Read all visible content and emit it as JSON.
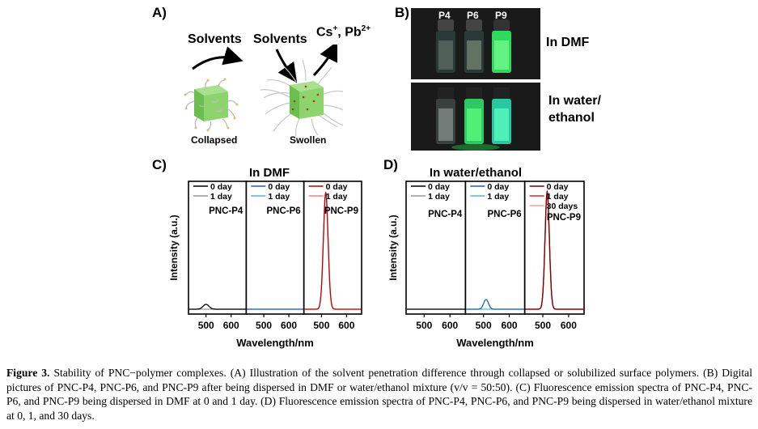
{
  "panel_a": {
    "label": "A)",
    "solvents_left": "Solvents",
    "solvents_right": "Solvents",
    "ions": "Cs",
    "ions_sup1": "+",
    "ions_mid": ", Pb",
    "ions_sup2": "2+",
    "collapsed": "Collapsed",
    "swollen": "Swollen"
  },
  "panel_b": {
    "label": "B)",
    "vials": [
      "P4",
      "P6",
      "P9"
    ],
    "top_label": "In DMF",
    "bottom_label_1": "In water/",
    "bottom_label_2": "ethanol"
  },
  "panel_c_label": "C)",
  "panel_d_label": "D)",
  "chart_data": [
    {
      "type": "line",
      "title": "In DMF",
      "xlabel": "Wavelength/nm",
      "ylabel": "Intensity (a.u.)",
      "panels": [
        {
          "name": "PNC-P4",
          "xlim": [
            430,
            660
          ],
          "xticks": [
            500,
            600
          ],
          "series": [
            {
              "name": "0 day",
              "color": "#000000",
              "peak_x": 500,
              "peak_y": 0.04,
              "fwhm": 28
            },
            {
              "name": "1 day",
              "color": "#999999",
              "peak_x": 500,
              "peak_y": 0.0,
              "fwhm": 28
            }
          ]
        },
        {
          "name": "PNC-P6",
          "xlim": [
            430,
            660
          ],
          "xticks": [
            500,
            600
          ],
          "series": [
            {
              "name": "0 day",
              "color": "#1f5fb4",
              "peak_x": 510,
              "peak_y": 0.0,
              "fwhm": 25
            },
            {
              "name": "1 day",
              "color": "#4fb3e8",
              "peak_x": 510,
              "peak_y": 0.0,
              "fwhm": 25
            }
          ]
        },
        {
          "name": "PNC-P9",
          "xlim": [
            430,
            660
          ],
          "xticks": [
            500,
            600
          ],
          "series": [
            {
              "name": "0 day",
              "color": "#c00000",
              "peak_x": 517,
              "peak_y": 0.96,
              "fwhm": 22
            },
            {
              "name": "1 day",
              "color": "#f08080",
              "peak_x": 517,
              "peak_y": 0.95,
              "fwhm": 22
            }
          ]
        }
      ]
    },
    {
      "type": "line",
      "title": "In water/ethanol",
      "xlabel": "Wavelength/nm",
      "ylabel": "Intensity (a.u.)",
      "panels": [
        {
          "name": "PNC-P4",
          "xlim": [
            430,
            660
          ],
          "xticks": [
            500,
            600
          ],
          "series": [
            {
              "name": "0 day",
              "color": "#000000",
              "peak_x": 500,
              "peak_y": 0.0,
              "fwhm": 28
            },
            {
              "name": "1 day",
              "color": "#999999",
              "peak_x": 500,
              "peak_y": 0.0,
              "fwhm": 28
            }
          ]
        },
        {
          "name": "PNC-P6",
          "xlim": [
            430,
            660
          ],
          "xticks": [
            500,
            600
          ],
          "series": [
            {
              "name": "0 day",
              "color": "#1f5fb4",
              "peak_x": 510,
              "peak_y": 0.08,
              "fwhm": 22
            },
            {
              "name": "1 day",
              "color": "#4fb3e8",
              "peak_x": 510,
              "peak_y": 0.0,
              "fwhm": 22
            }
          ]
        },
        {
          "name": "PNC-P9",
          "xlim": [
            430,
            660
          ],
          "xticks": [
            500,
            600
          ],
          "series": [
            {
              "name": "0 day",
              "color": "#7a0000",
              "peak_x": 517,
              "peak_y": 0.97,
              "fwhm": 20
            },
            {
              "name": "1 day",
              "color": "#e02020",
              "peak_x": 517,
              "peak_y": 0.95,
              "fwhm": 20
            },
            {
              "name": "30 days",
              "color": "#f4a0a0",
              "peak_x": 517,
              "peak_y": 0.93,
              "fwhm": 20
            }
          ]
        }
      ]
    }
  ],
  "caption": {
    "lead": "Figure 3.",
    "text": " Stability of PNC−polymer complexes. (A) Illustration of the solvent penetration difference through collapsed or solubilized surface polymers. (B) Digital pictures of PNC-P4, PNC-P6, and PNC-P9 after being dispersed in DMF or water/ethanol mixture (v/v = 50:50). (C) Fluorescence emission spectra of PNC-P4, PNC-P6, and PNC-P9 being dispersed in DMF at 0 and 1 day. (D) Fluorescence emission spectra of PNC-P4, PNC-P6, and PNC-P9 being dispersed in water/ethanol mixture at 0, 1, and 30 days."
  }
}
